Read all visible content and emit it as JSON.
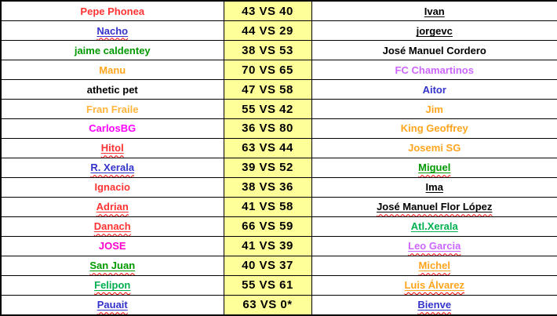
{
  "palette": {
    "red": "#ff3333",
    "blue": "#3333cc",
    "green": "#009900",
    "bright_green": "#00b050",
    "orange": "#ffa51e",
    "light_orange": "#ffb43c",
    "magenta": "#ff00ff",
    "pink": "#ff00cc",
    "violet": "#cc66ff",
    "black": "#000000",
    "score_bg": "#ffff99",
    "squiggle": "#ff0000",
    "border": "#000000"
  },
  "table": {
    "rows": [
      {
        "left": {
          "text": "Pepe Phonea",
          "color": "red",
          "underline": false,
          "squiggle": false
        },
        "score": "43 VS 40",
        "right": {
          "text": "Ivan",
          "color": "black",
          "underline": true,
          "squiggle": false
        }
      },
      {
        "left": {
          "text": "Nacho",
          "color": "blue",
          "underline": true,
          "squiggle": true
        },
        "score": "44 VS 29",
        "right": {
          "text": "jorgevc",
          "color": "black",
          "underline": true,
          "squiggle": false
        }
      },
      {
        "left": {
          "text": "jaime caldentey",
          "color": "green",
          "underline": false,
          "squiggle": false
        },
        "score": "38 VS 53",
        "right": {
          "text": "José Manuel Cordero",
          "color": "black",
          "underline": false,
          "squiggle": false
        }
      },
      {
        "left": {
          "text": "Manu",
          "color": "orange",
          "underline": false,
          "squiggle": false
        },
        "score": "70 VS 65",
        "right": {
          "text": "FC Chamartinos",
          "color": "violet",
          "underline": false,
          "squiggle": false
        }
      },
      {
        "left": {
          "text": "athetic pet",
          "color": "black",
          "underline": false,
          "squiggle": false
        },
        "score": "47 VS 58",
        "right": {
          "text": "Aitor",
          "color": "blue",
          "underline": false,
          "squiggle": false
        }
      },
      {
        "left": {
          "text": "Fran Fraile",
          "color": "light_orange",
          "underline": false,
          "squiggle": false
        },
        "score": "55 VS 42",
        "right": {
          "text": "Jim",
          "color": "orange",
          "underline": false,
          "squiggle": false
        }
      },
      {
        "left": {
          "text": "CarlosBG",
          "color": "magenta",
          "underline": false,
          "squiggle": false
        },
        "score": "36 VS 80",
        "right": {
          "text": "King Geoffrey",
          "color": "orange",
          "underline": false,
          "squiggle": false
        }
      },
      {
        "left": {
          "text": "Hitol",
          "color": "red",
          "underline": true,
          "squiggle": true
        },
        "score": "63 VS 44",
        "right": {
          "text": "Josemi SG",
          "color": "orange",
          "underline": false,
          "squiggle": false
        }
      },
      {
        "left": {
          "text": "R. Xerala",
          "color": "blue",
          "underline": true,
          "squiggle": true
        },
        "score": "39 VS 52",
        "right": {
          "text": "Miguel",
          "color": "green",
          "underline": true,
          "squiggle": true
        }
      },
      {
        "left": {
          "text": "Ignacio",
          "color": "red",
          "underline": false,
          "squiggle": false
        },
        "score": "38 VS 36",
        "right": {
          "text": "Ima",
          "color": "black",
          "underline": true,
          "squiggle": false
        }
      },
      {
        "left": {
          "text": "Adrian",
          "color": "red",
          "underline": true,
          "squiggle": true
        },
        "score": "41 VS 58",
        "right": {
          "text": "José Manuel Flor López",
          "color": "black",
          "underline": true,
          "squiggle": true
        }
      },
      {
        "left": {
          "text": "Danach",
          "color": "red",
          "underline": true,
          "squiggle": true
        },
        "score": "66 VS 59",
        "right": {
          "text": "Atl.Xerala",
          "color": "bright_green",
          "underline": true,
          "squiggle": false
        }
      },
      {
        "left": {
          "text": "JOSE",
          "color": "pink",
          "underline": false,
          "squiggle": false
        },
        "score": "41 VS 39",
        "right": {
          "text": "Leo Garcia",
          "color": "violet",
          "underline": true,
          "squiggle": true
        }
      },
      {
        "left": {
          "text": "San Juan",
          "color": "green",
          "underline": true,
          "squiggle": true
        },
        "score": "40 VS 37",
        "right": {
          "text": "Michel",
          "color": "orange",
          "underline": true,
          "squiggle": true
        }
      },
      {
        "left": {
          "text": "Felipon",
          "color": "bright_green",
          "underline": true,
          "squiggle": true
        },
        "score": "55 VS 61",
        "right": {
          "text": "Luis Álvarez",
          "color": "orange",
          "underline": true,
          "squiggle": true
        }
      },
      {
        "left": {
          "text": "Pauait",
          "color": "blue",
          "underline": true,
          "squiggle": true
        },
        "score": "63 VS 0*",
        "right": {
          "text": "Bienve",
          "color": "blue",
          "underline": true,
          "squiggle": true
        }
      }
    ]
  }
}
